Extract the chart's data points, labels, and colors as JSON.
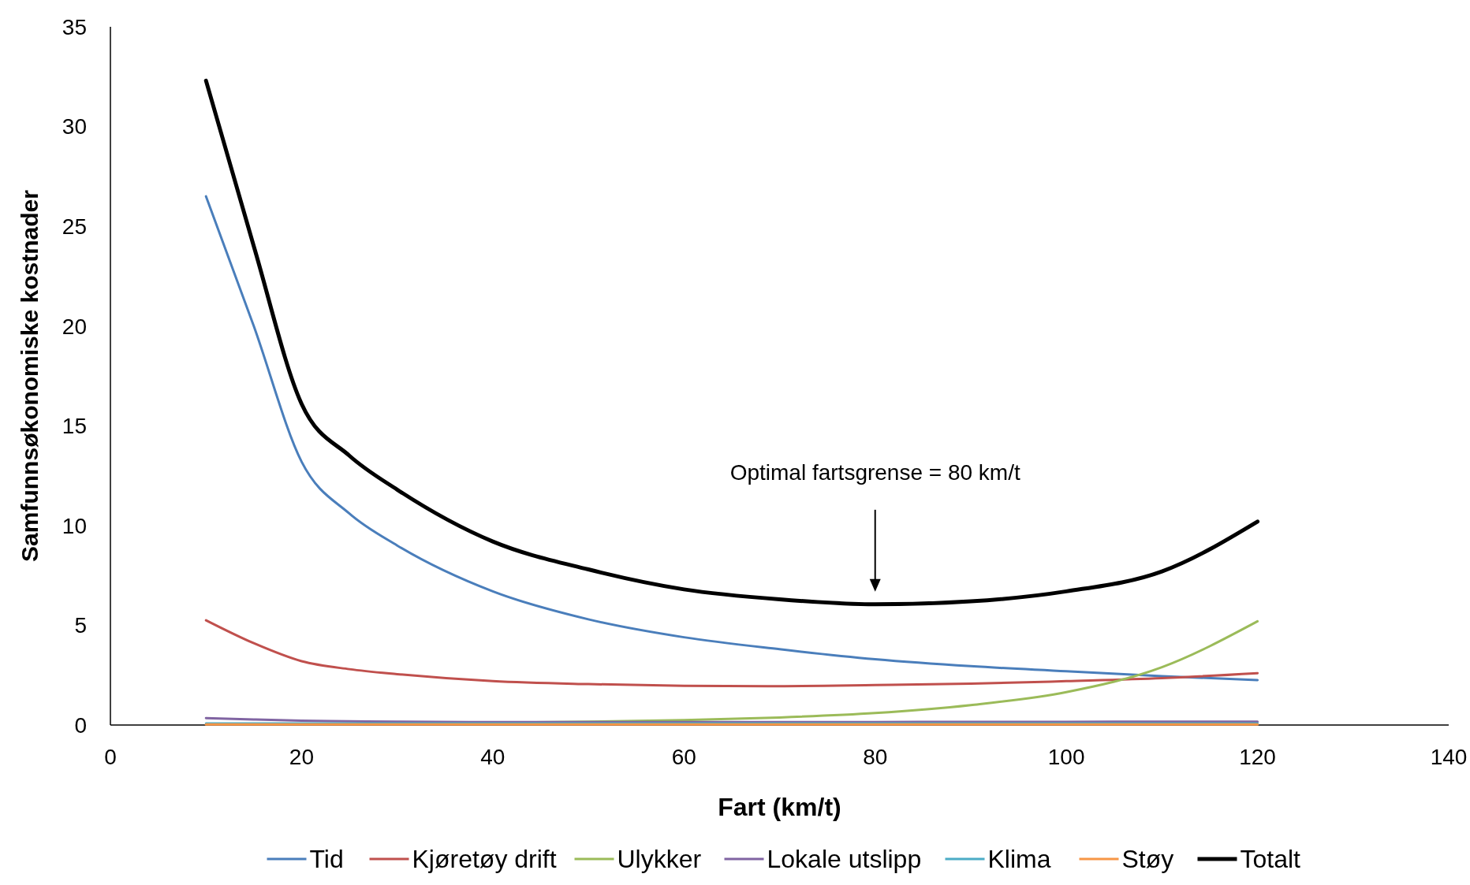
{
  "chart_data": {
    "type": "line",
    "xlabel": "Fart (km/t)",
    "ylabel": "Samfunnsøkonomiske  kostnader",
    "x": [
      10,
      15,
      20,
      25,
      30,
      40,
      50,
      60,
      70,
      80,
      90,
      100,
      110,
      120
    ],
    "series": [
      {
        "name": "Tid",
        "color": "#4a7ebb",
        "values": [
          26.5,
          20.0,
          13.2,
          10.6,
          9.0,
          6.7,
          5.3,
          4.4,
          3.8,
          3.3,
          2.95,
          2.7,
          2.45,
          2.25
        ]
      },
      {
        "name": "Kjøretøy drift",
        "color": "#c0504d",
        "values": [
          5.25,
          4.1,
          3.2,
          2.8,
          2.55,
          2.2,
          2.05,
          1.97,
          1.95,
          2.0,
          2.07,
          2.2,
          2.35,
          2.6
        ]
      },
      {
        "name": "Ulykker",
        "color": "#9bbb59",
        "values": [
          null,
          null,
          null,
          null,
          null,
          0.12,
          0.17,
          0.25,
          0.38,
          0.6,
          1.0,
          1.65,
          2.9,
          5.2
        ]
      },
      {
        "name": "Lokale utslipp",
        "color": "#8064a2",
        "values": [
          0.35,
          0.28,
          0.22,
          0.19,
          0.17,
          0.15,
          0.15,
          0.15,
          0.15,
          0.15,
          0.16,
          0.16,
          0.17,
          0.17
        ]
      },
      {
        "name": "Klima",
        "color": "#4bacc6",
        "values": [
          0.08,
          0.08,
          0.08,
          0.08,
          0.08,
          0.08,
          0.08,
          0.08,
          0.08,
          0.08,
          0.08,
          0.08,
          0.08,
          0.08
        ]
      },
      {
        "name": "Støy",
        "color": "#f79646",
        "values": [
          0.03,
          0.03,
          0.03,
          0.03,
          0.03,
          0.03,
          0.03,
          0.03,
          0.03,
          0.03,
          0.03,
          0.03,
          0.03,
          0.03
        ]
      },
      {
        "name": "Totalt",
        "color": "#000000",
        "values": [
          32.3,
          24.0,
          16.1,
          13.5,
          11.8,
          9.2,
          7.8,
          6.8,
          6.3,
          6.05,
          6.2,
          6.7,
          7.7,
          10.2
        ]
      }
    ],
    "xlim": [
      0,
      140
    ],
    "xticks": [
      0,
      20,
      40,
      60,
      80,
      100,
      120,
      140
    ],
    "ylim": [
      0,
      35
    ],
    "yticks": [
      0,
      5,
      10,
      15,
      20,
      25,
      30,
      35
    ],
    "grid": false,
    "legend": "bottom",
    "marker": "none",
    "line_style": "solid",
    "annotations": [
      "Optimal fartsgrense = 80 km/t"
    ]
  }
}
